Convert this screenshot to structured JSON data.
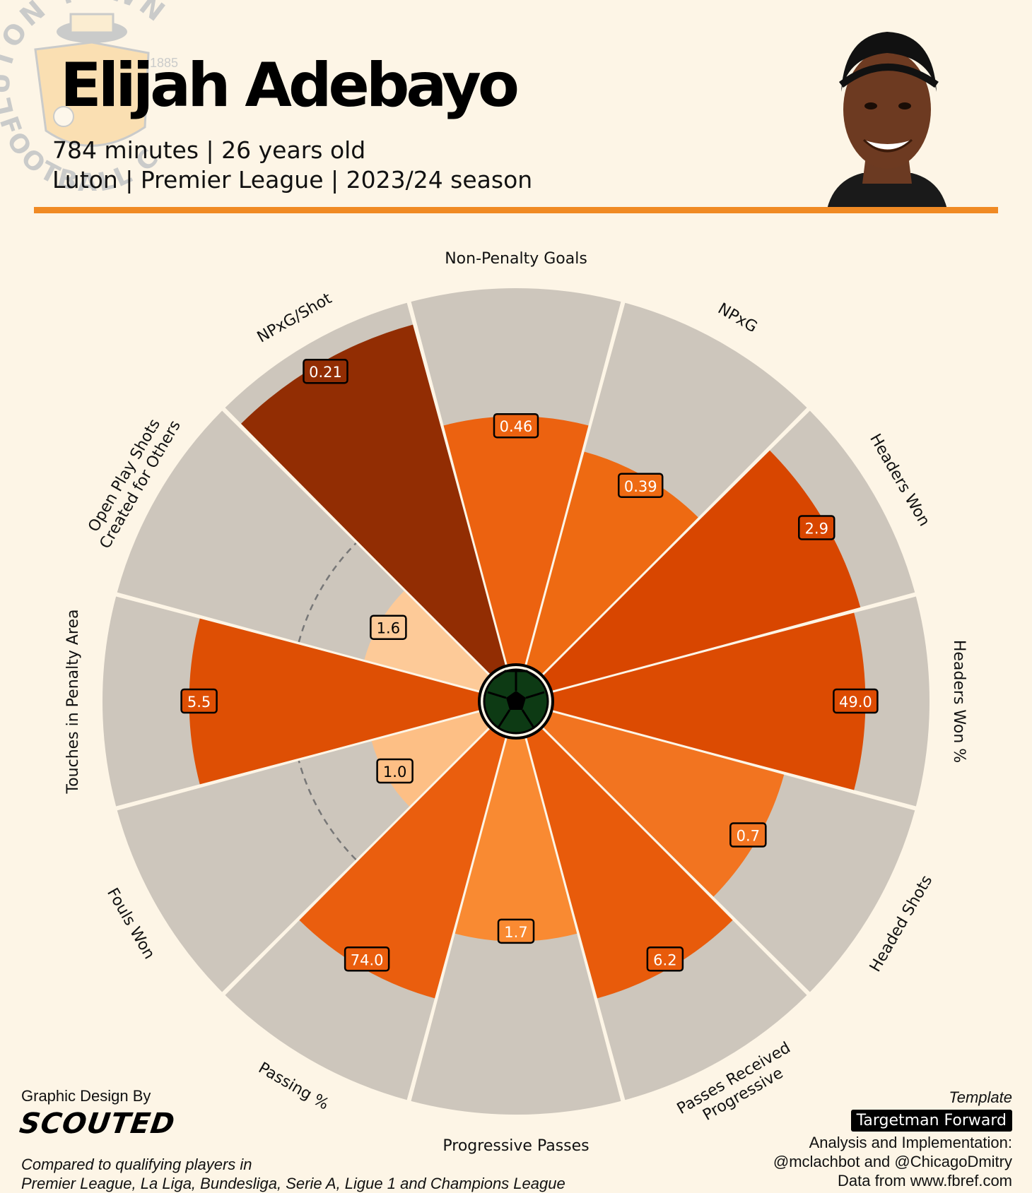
{
  "header": {
    "player_name": "Elijah Adebayo",
    "line1": "784 minutes | 26 years old",
    "line2": "Luton | Premier League | 2023/24 season"
  },
  "badge": {
    "text_top": "LUTON TOWN",
    "text_bottom": "FOOTBALL CLUB",
    "year": "1885"
  },
  "chart_data": {
    "type": "polar-bar",
    "title": "",
    "max_value": 100,
    "slices": [
      {
        "label": "Non-Penalty Goals",
        "value_label": "0.46",
        "percentile": 66,
        "color": "#ec6210"
      },
      {
        "label": "NPxG",
        "value_label": "0.39",
        "percentile": 59,
        "color": "#ee6a12"
      },
      {
        "label": "Headers Won",
        "value_label": "2.9",
        "percentile": 85,
        "color": "#d84600"
      },
      {
        "label": "Headers Won %",
        "value_label": "49.0",
        "percentile": 83,
        "color": "#dc4b02"
      },
      {
        "label": "Headed Shots",
        "value_label": "0.7",
        "percentile": 64,
        "color": "#f27420"
      },
      {
        "label": "Progressive Passes Received",
        "value_label": "6.2",
        "percentile": 72,
        "color": "#e85b0b"
      },
      {
        "label": "Progressive Passes",
        "value_label": "1.7",
        "percentile": 54,
        "color": "#f98a32"
      },
      {
        "label": "Passing %",
        "value_label": "74.0",
        "percentile": 72,
        "color": "#ea5e0e"
      },
      {
        "label": "Fouls Won",
        "value_label": "1.0",
        "percentile": 30,
        "color": "#fdbf85"
      },
      {
        "label": "Touches in Penalty Area",
        "value_label": "5.5",
        "percentile": 77,
        "color": "#de4f04"
      },
      {
        "label": "Open Play Shots Created for Others",
        "value_label": "1.6",
        "percentile": 32,
        "color": "#fdca98"
      },
      {
        "label": "NPxG/Shot",
        "value_label": "0.21",
        "percentile": 94,
        "color": "#922d03"
      }
    ],
    "reference_line_percentile": 50,
    "background_color": "#cdc6bc"
  },
  "credits": {
    "design_label": "Graphic Design By",
    "logo_text": "SCOUTED",
    "compare_line1": "Compared to qualifying players in",
    "compare_line2": "Premier League, La Liga, Bundesliga, Serie A, Ligue 1 and Champions League",
    "template_label": "Template",
    "template_name": "Targetman Forward",
    "analysis_line1": "Analysis and Implementation:",
    "analysis_line2": "@mclachbot and @ChicagoDmitry",
    "source_line": "Data from www.fbref.com"
  }
}
